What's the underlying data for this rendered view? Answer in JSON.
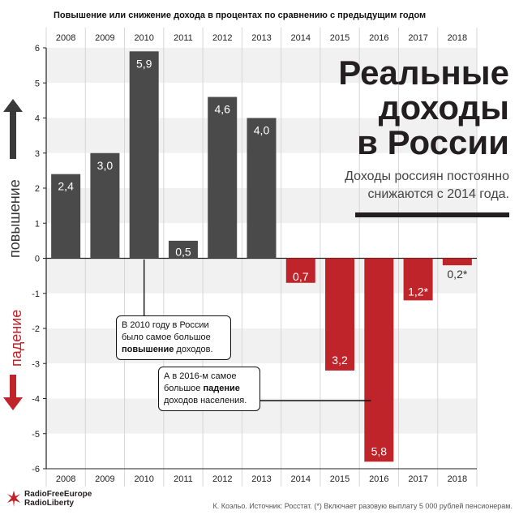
{
  "header": "Повышение или снижение дохода в процентах по сравнению с предыдущим годом",
  "title_lines": [
    "Реальные",
    "доходы",
    "в России"
  ],
  "subtitle_lines": [
    "Доходы россиян постоянно",
    "снижаются с 2014 года."
  ],
  "side_labels": {
    "up": "повышение",
    "down": "падение"
  },
  "callout_2010": {
    "line1": "В 2010 году в России",
    "line2": "было самое большое",
    "bold": "повышение",
    "tail": " доходов."
  },
  "callout_2016": {
    "line1": "А в 2016-м самое",
    "line2_pre": "большое ",
    "bold": "падение",
    "line3": "доходов населения."
  },
  "logo": {
    "line1": "RadioFreeEurope",
    "line2": "RadioLiberty"
  },
  "footer": "К. Коэльо. Источник: Росстат. (*) Включает разовую выплату 5 000 рублей пенсионерам.",
  "colors": {
    "positive": "#4a4a4a",
    "negative": "#c0242b",
    "arrow_up": "#3a3a3a",
    "arrow_down": "#c0242b"
  },
  "chart_data": {
    "type": "bar",
    "categories": [
      "2008",
      "2009",
      "2010",
      "2011",
      "2012",
      "2013",
      "2014",
      "2015",
      "2016",
      "2017",
      "2018"
    ],
    "values": [
      2.4,
      3.0,
      5.9,
      0.5,
      4.6,
      4.0,
      -0.7,
      -3.2,
      -5.8,
      -1.2,
      -0.2
    ],
    "labels": [
      "2,4",
      "3,0",
      "5,9",
      "0,5",
      "4,6",
      "4,0",
      "0,7",
      "3,2",
      "5,8",
      "1,2*",
      "0,2*"
    ],
    "y_ticks": [
      "6",
      "5",
      "4",
      "3",
      "2",
      "1",
      "0",
      "-1",
      "-2",
      "-3",
      "-4",
      "-5",
      "-6"
    ],
    "ylim": [
      -6,
      6
    ],
    "grid": "alternating horizontal bands"
  }
}
